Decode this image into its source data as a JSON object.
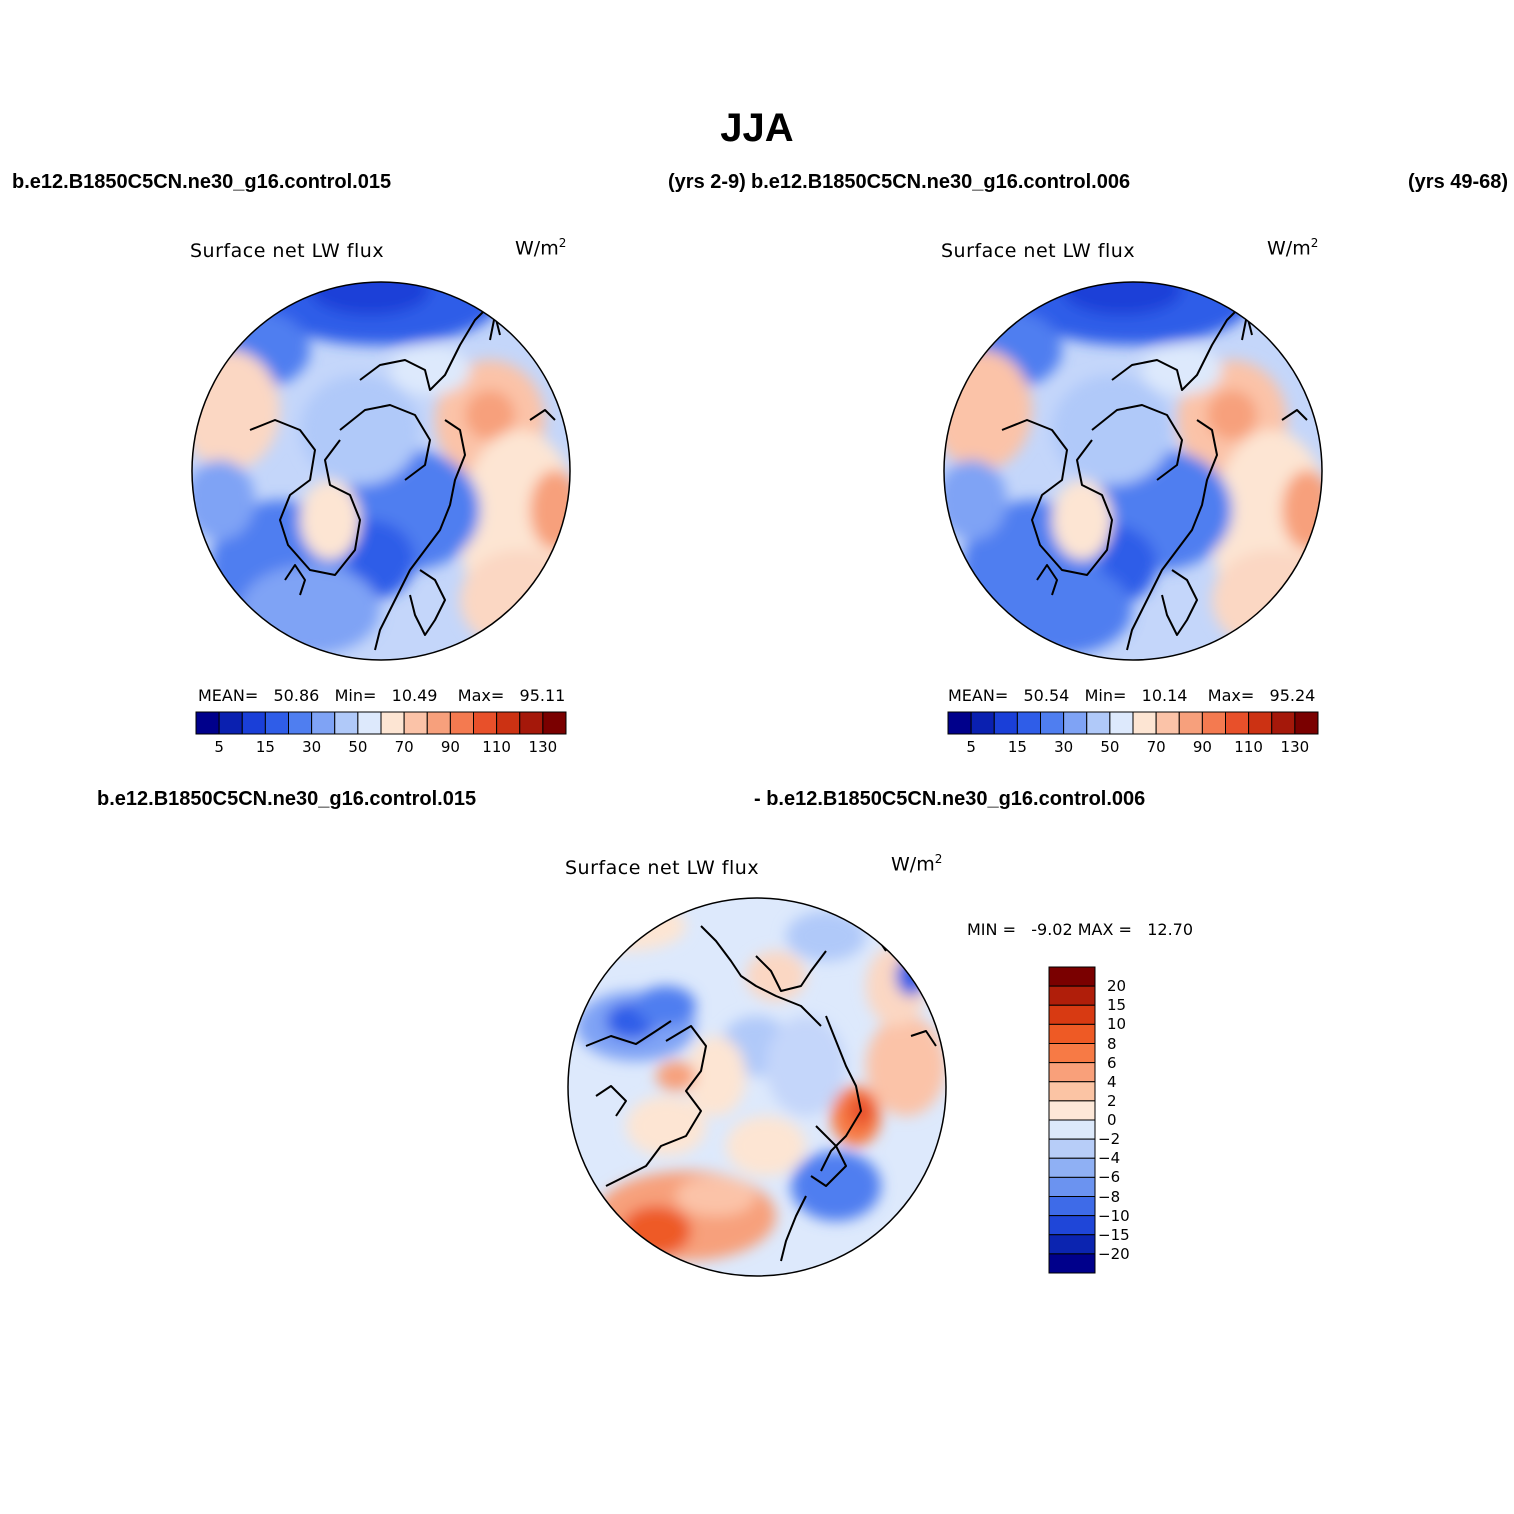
{
  "chart_data": [
    {
      "type": "heatmap",
      "projection": "north polar stereographic",
      "case_left": "b.e12.B1850C5CN.ne30_g16.control.015",
      "case_right": "(yrs 2-9)",
      "title": "Surface net LW flux",
      "units": "W/m",
      "units_exp": "2",
      "mean_label": "MEAN=",
      "mean": "50.86",
      "min_label": "Min=",
      "min": "10.49",
      "max_label": "Max=",
      "max": "95.11",
      "colorbar_labels": [
        "5",
        "15",
        "30",
        "50",
        "70",
        "90",
        "110",
        "130"
      ],
      "levels": [
        0,
        5,
        10,
        15,
        20,
        30,
        40,
        50,
        60,
        70,
        80,
        90,
        100,
        110,
        120,
        130
      ]
    },
    {
      "type": "heatmap",
      "projection": "north polar stereographic",
      "case_left": "b.e12.B1850C5CN.ne30_g16.control.006",
      "case_right": "(yrs 49-68)",
      "title": "Surface net LW flux",
      "units": "W/m",
      "units_exp": "2",
      "mean_label": "MEAN=",
      "mean": "50.54",
      "min_label": "Min=",
      "min": "10.14",
      "max_label": "Max=",
      "max": "95.24",
      "colorbar_labels": [
        "5",
        "15",
        "30",
        "50",
        "70",
        "90",
        "110",
        "130"
      ],
      "levels": [
        0,
        5,
        10,
        15,
        20,
        30,
        40,
        50,
        60,
        70,
        80,
        90,
        100,
        110,
        120,
        130
      ]
    },
    {
      "type": "heatmap",
      "projection": "north polar stereographic",
      "case_left": "b.e12.B1850C5CN.ne30_g16.control.015",
      "case_right": "- b.e12.B1850C5CN.ne30_g16.control.006",
      "title": "Surface net LW flux",
      "units": "W/m",
      "units_exp": "2",
      "min_label": "MIN =",
      "min": "-9.02",
      "max_label": "MAX =",
      "max": "12.70",
      "colorbar_labels": [
        "20",
        "15",
        "10",
        "8",
        "6",
        "4",
        "2",
        "0",
        "−2",
        "−4",
        "−6",
        "−8",
        "−10",
        "−15",
        "−20"
      ],
      "levels": [
        20,
        15,
        10,
        8,
        6,
        4,
        2,
        0,
        -2,
        -4,
        -6,
        -8,
        -10,
        -15,
        -20
      ]
    }
  ],
  "figure_title": "JJA",
  "palette": [
    "#00008b",
    "#0a20b0",
    "#1a3fd8",
    "#2f5de8",
    "#4f7ef0",
    "#7fa3f5",
    "#b0c9f9",
    "#dde9fc",
    "#fde5d3",
    "#fbc3a8",
    "#f7a07c",
    "#f47a50",
    "#e8502a",
    "#cc3213",
    "#a5180a",
    "#7a0000"
  ]
}
